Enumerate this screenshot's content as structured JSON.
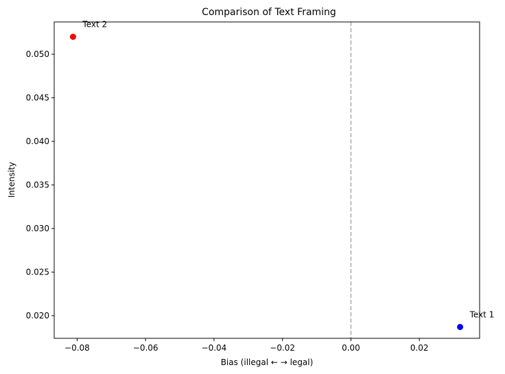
{
  "chart_data": {
    "type": "scatter",
    "title": "Comparison of Text Framing",
    "xlabel": "Bias (illegal ← → legal)",
    "ylabel": "Intensity",
    "xlim": [
      -0.0867,
      0.0376
    ],
    "ylim": [
      0.0174,
      0.0537
    ],
    "xticks": [
      -0.08,
      -0.06,
      -0.04,
      -0.02,
      0.0,
      0.02
    ],
    "xtick_labels": [
      "−0.08",
      "−0.06",
      "−0.04",
      "−0.02",
      "0.00",
      "0.02"
    ],
    "yticks": [
      0.02,
      0.025,
      0.03,
      0.035,
      0.04,
      0.045,
      0.05
    ],
    "ytick_labels": [
      "0.020",
      "0.025",
      "0.030",
      "0.035",
      "0.040",
      "0.045",
      "0.050"
    ],
    "grid": false,
    "reference_line": {
      "axis": "x",
      "value": 0.0,
      "style": "dashed",
      "color": "#aaaaaa"
    },
    "points": [
      {
        "label": "Text 1",
        "x": 0.0319,
        "y": 0.0187,
        "color": "#0000ff"
      },
      {
        "label": "Text 2",
        "x": -0.0812,
        "y": 0.052,
        "color": "#ff0000"
      }
    ]
  }
}
